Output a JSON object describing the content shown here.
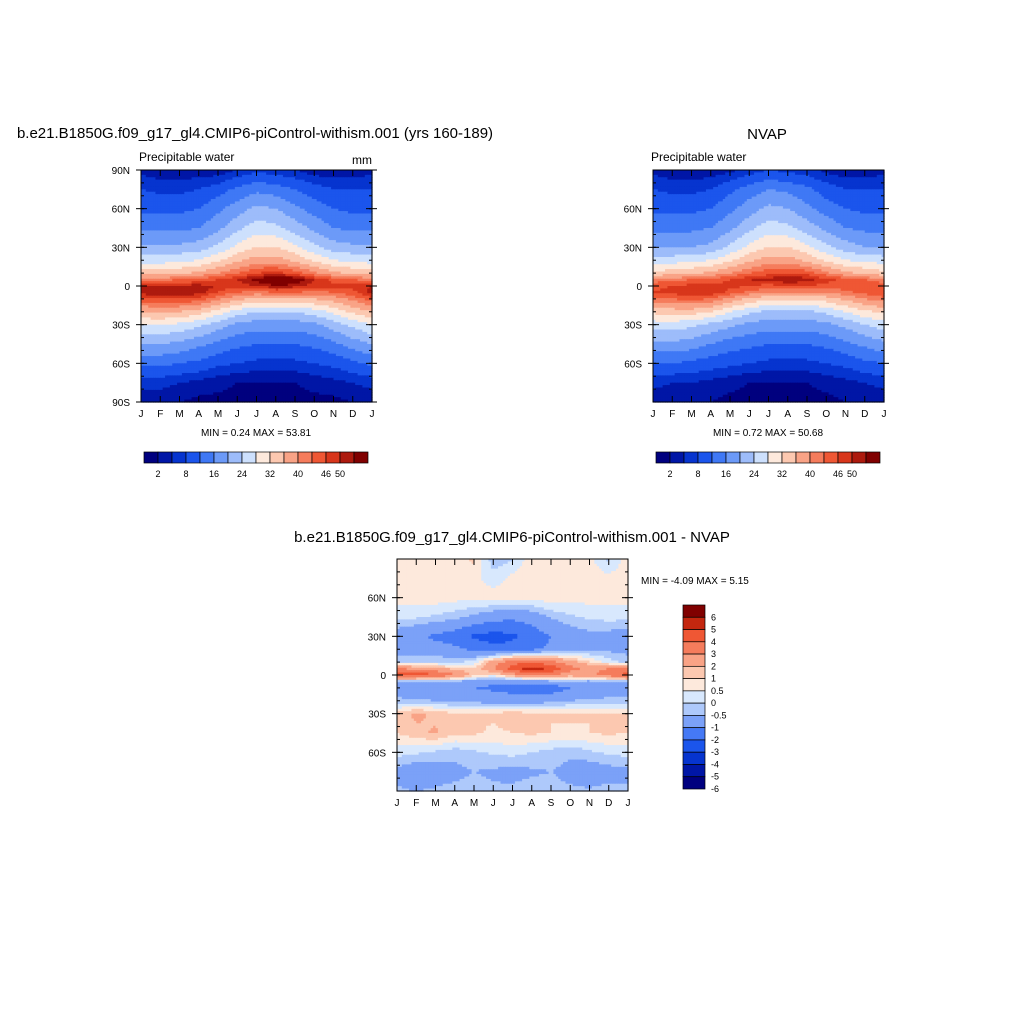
{
  "chart_data": [
    {
      "type": "heatmap",
      "title": "b.e21.B1850G.f09_g17_gl4.CMIP6-piControl-withism.001 (yrs 160-189)",
      "subtitle": "Precipitable water",
      "units": "mm",
      "x_ticks": [
        "J",
        "F",
        "M",
        "A",
        "M",
        "J",
        "J",
        "A",
        "S",
        "O",
        "N",
        "D",
        "J"
      ],
      "y_ticks": [
        "90N",
        "60N",
        "30N",
        "0",
        "30S",
        "60S",
        "90S"
      ],
      "stats": "MIN =   0.24 MAX =  53.81",
      "colorbar_labels": [
        "2",
        "8",
        "16",
        "24",
        "32",
        "40",
        "46",
        "50"
      ],
      "lat_anchors": [
        90,
        75,
        60,
        45,
        30,
        20,
        10,
        5,
        0,
        -5,
        -10,
        -20,
        -30,
        -45,
        -60,
        -75,
        -90
      ],
      "rows": [
        [
          4,
          3,
          3,
          3,
          3,
          5,
          7,
          6,
          5,
          3,
          3,
          3,
          4
        ],
        [
          8,
          7,
          7,
          8,
          10,
          13,
          15,
          14,
          12,
          10,
          8,
          8,
          8
        ],
        [
          11,
          11,
          11,
          12,
          15,
          18,
          21,
          20,
          17,
          14,
          12,
          11,
          11
        ],
        [
          15,
          15,
          15,
          16,
          19,
          23,
          26,
          25,
          22,
          19,
          16,
          15,
          15
        ],
        [
          21,
          21,
          21,
          22,
          25,
          29,
          32,
          32,
          29,
          25,
          22,
          21,
          21
        ],
        [
          26,
          26,
          27,
          28,
          31,
          35,
          38,
          38,
          35,
          31,
          28,
          27,
          26
        ],
        [
          34,
          34,
          35,
          37,
          40,
          43,
          46,
          47,
          45,
          41,
          37,
          35,
          34
        ],
        [
          42,
          42,
          43,
          44,
          46,
          48,
          51,
          53,
          52,
          48,
          45,
          43,
          42
        ],
        [
          48,
          49,
          49,
          49,
          48,
          47,
          48,
          50,
          49,
          47,
          47,
          47,
          48
        ],
        [
          49,
          50,
          50,
          49,
          46,
          43,
          42,
          43,
          43,
          42,
          43,
          45,
          49
        ],
        [
          45,
          46,
          46,
          45,
          41,
          37,
          35,
          35,
          35,
          36,
          38,
          41,
          45
        ],
        [
          36,
          37,
          36,
          34,
          30,
          26,
          24,
          24,
          24,
          26,
          29,
          33,
          36
        ],
        [
          28,
          28,
          27,
          25,
          22,
          19,
          18,
          18,
          18,
          19,
          22,
          25,
          28
        ],
        [
          20,
          20,
          19,
          17,
          15,
          13,
          12,
          12,
          12,
          13,
          15,
          18,
          20
        ],
        [
          13,
          13,
          12,
          11,
          9,
          8,
          7,
          7,
          7,
          8,
          9,
          11,
          13
        ],
        [
          6,
          6,
          5,
          4,
          3,
          2,
          2,
          2,
          2,
          3,
          4,
          5,
          6
        ],
        [
          3,
          3,
          2,
          1,
          1,
          1,
          1,
          1,
          1,
          1,
          1,
          2,
          3
        ]
      ]
    },
    {
      "type": "heatmap",
      "title": "NVAP",
      "subtitle": "Precipitable water",
      "x_ticks": [
        "J",
        "F",
        "M",
        "A",
        "M",
        "J",
        "J",
        "A",
        "S",
        "O",
        "N",
        "D",
        "J"
      ],
      "y_ticks": [
        "60N",
        "30N",
        "0",
        "30S",
        "60S"
      ],
      "stats": "MIN =   0.72 MAX =  50.68",
      "colorbar_labels": [
        "2",
        "8",
        "16",
        "24",
        "32",
        "40",
        "46",
        "50"
      ],
      "lat_anchors": [
        90,
        75,
        60,
        45,
        30,
        20,
        10,
        5,
        0,
        -5,
        -10,
        -20,
        -30,
        -45,
        -60,
        -75,
        -90
      ],
      "rows": [
        [
          4,
          3,
          3,
          3,
          4,
          6,
          8,
          7,
          6,
          4,
          3,
          3,
          4
        ],
        [
          8,
          7,
          7,
          8,
          11,
          14,
          16,
          15,
          13,
          10,
          8,
          8,
          8
        ],
        [
          11,
          11,
          11,
          12,
          15,
          18,
          21,
          20,
          17,
          14,
          12,
          11,
          11
        ],
        [
          15,
          15,
          15,
          16,
          19,
          23,
          26,
          25,
          22,
          19,
          16,
          15,
          15
        ],
        [
          20,
          20,
          20,
          21,
          25,
          29,
          32,
          32,
          29,
          25,
          22,
          20,
          20
        ],
        [
          26,
          26,
          27,
          28,
          31,
          35,
          38,
          38,
          35,
          31,
          28,
          27,
          26
        ],
        [
          33,
          34,
          35,
          37,
          40,
          43,
          45,
          46,
          45,
          41,
          37,
          35,
          33
        ],
        [
          41,
          42,
          43,
          44,
          46,
          48,
          49,
          50,
          49,
          47,
          45,
          43,
          41
        ],
        [
          45,
          46,
          47,
          47,
          47,
          46,
          45,
          46,
          46,
          45,
          45,
          45,
          45
        ],
        [
          46,
          47,
          48,
          48,
          45,
          42,
          40,
          40,
          40,
          40,
          42,
          44,
          46
        ],
        [
          42,
          43,
          44,
          43,
          39,
          35,
          33,
          33,
          33,
          34,
          37,
          40,
          42
        ],
        [
          33,
          34,
          34,
          32,
          28,
          25,
          23,
          23,
          23,
          25,
          28,
          31,
          33
        ],
        [
          26,
          26,
          25,
          23,
          21,
          19,
          18,
          18,
          18,
          19,
          21,
          24,
          26
        ],
        [
          19,
          19,
          18,
          16,
          14,
          13,
          12,
          12,
          12,
          13,
          15,
          17,
          19
        ],
        [
          12,
          12,
          11,
          10,
          9,
          8,
          7,
          7,
          7,
          8,
          9,
          11,
          12
        ],
        [
          6,
          5,
          5,
          4,
          3,
          2,
          2,
          2,
          2,
          3,
          4,
          5,
          6
        ],
        [
          3,
          3,
          2,
          2,
          1,
          1,
          1,
          1,
          1,
          1,
          2,
          2,
          3
        ]
      ]
    },
    {
      "type": "heatmap",
      "title": "b.e21.B1850G.f09_g17_gl4.CMIP6-piControl-withism.001 - NVAP",
      "x_ticks": [
        "J",
        "F",
        "M",
        "A",
        "M",
        "J",
        "J",
        "A",
        "S",
        "O",
        "N",
        "D",
        "J"
      ],
      "y_ticks": [
        "60N",
        "30N",
        "0",
        "30S",
        "60S"
      ],
      "stats": "MIN =  -4.09 MAX =   5.15",
      "colorbar_labels": [
        "6",
        "5",
        "4",
        "3",
        "2",
        "1",
        "0.5",
        "0",
        "-0.5",
        "-1",
        "-2",
        "-3",
        "-4",
        "-5",
        "-6"
      ],
      "lat_anchors": [
        90,
        75,
        60,
        45,
        30,
        20,
        10,
        5,
        0,
        -5,
        -10,
        -20,
        -30,
        -45,
        -60,
        -75,
        -90
      ],
      "rows": [
        [
          0.3,
          0.2,
          0.3,
          0.2,
          0.6,
          -0.8,
          -0.6,
          0.4,
          0.2,
          0.3,
          0.2,
          -0.6,
          0.3
        ],
        [
          0.3,
          0.2,
          0.3,
          0.4,
          0.2,
          -0.3,
          0.2,
          0.5,
          0.4,
          0.3,
          0.2,
          0.2,
          0.3
        ],
        [
          0.2,
          0.2,
          0.3,
          0.2,
          0.2,
          0.3,
          0.2,
          0.2,
          0.3,
          0.2,
          0.2,
          0.2,
          0.2
        ],
        [
          -0.3,
          -0.4,
          -0.6,
          -0.8,
          -1.2,
          -1.6,
          -1.8,
          -1.5,
          -0.9,
          -0.6,
          -0.4,
          -0.3,
          -0.3
        ],
        [
          -1.5,
          -1.8,
          -2.2,
          -2.5,
          -3.2,
          -3.4,
          -3.2,
          -2.6,
          -2.0,
          -1.5,
          -1.2,
          -1.3,
          -1.5
        ],
        [
          -1.2,
          -1.4,
          -1.6,
          -1.8,
          -2.2,
          -2.8,
          -2.6,
          -2.2,
          -1.8,
          -1.4,
          -1.2,
          -1.2,
          -1.2
        ],
        [
          -0.8,
          -0.6,
          -0.5,
          -0.6,
          -0.3,
          1.5,
          2.6,
          2.8,
          2.3,
          1.4,
          0.5,
          -0.2,
          -0.8
        ],
        [
          2.2,
          1.6,
          1.2,
          0.8,
          0.5,
          1.8,
          3.6,
          4.6,
          3.8,
          2.4,
          1.6,
          2.0,
          2.2
        ],
        [
          3.4,
          3.6,
          3.2,
          2.2,
          0.8,
          0.3,
          1.5,
          2.4,
          2.2,
          1.4,
          1.8,
          2.6,
          3.4
        ],
        [
          -0.8,
          -1.0,
          -1.2,
          -1.0,
          -1.4,
          -1.8,
          -1.6,
          -1.4,
          -1.2,
          -1.0,
          -1.2,
          -1.0,
          -0.8
        ],
        [
          -1.6,
          -1.8,
          -1.6,
          -1.8,
          -2.0,
          -2.2,
          -2.4,
          -2.8,
          -2.6,
          -2.0,
          -1.8,
          -1.6,
          -1.6
        ],
        [
          -0.8,
          -0.9,
          -1.0,
          -1.2,
          -1.2,
          -1.4,
          -1.5,
          -1.4,
          -1.2,
          -1.0,
          -0.9,
          -0.8,
          -0.8
        ],
        [
          0.6,
          1.2,
          0.8,
          0.6,
          0.5,
          0.6,
          0.8,
          0.6,
          0.5,
          0.6,
          0.5,
          0.6,
          0.6
        ],
        [
          0.5,
          0.8,
          1.1,
          0.6,
          0.6,
          0.4,
          0.5,
          0.6,
          0.5,
          0.4,
          0.5,
          0.6,
          0.5
        ],
        [
          -0.3,
          -0.4,
          -0.6,
          -0.8,
          -0.6,
          -0.4,
          -0.3,
          -0.5,
          -0.7,
          -0.9,
          -0.6,
          -0.4,
          -0.3
        ],
        [
          -1.2,
          -1.6,
          -1.4,
          -1.2,
          -1.0,
          -1.1,
          -1.3,
          -1.1,
          -1.0,
          -1.2,
          -1.5,
          -1.3,
          -1.2
        ],
        [
          -0.9,
          -1.0,
          -0.9,
          -0.8,
          -0.8,
          -0.9,
          -0.8,
          -0.7,
          -0.8,
          -0.9,
          -0.9,
          -0.8,
          -0.9
        ]
      ]
    }
  ]
}
